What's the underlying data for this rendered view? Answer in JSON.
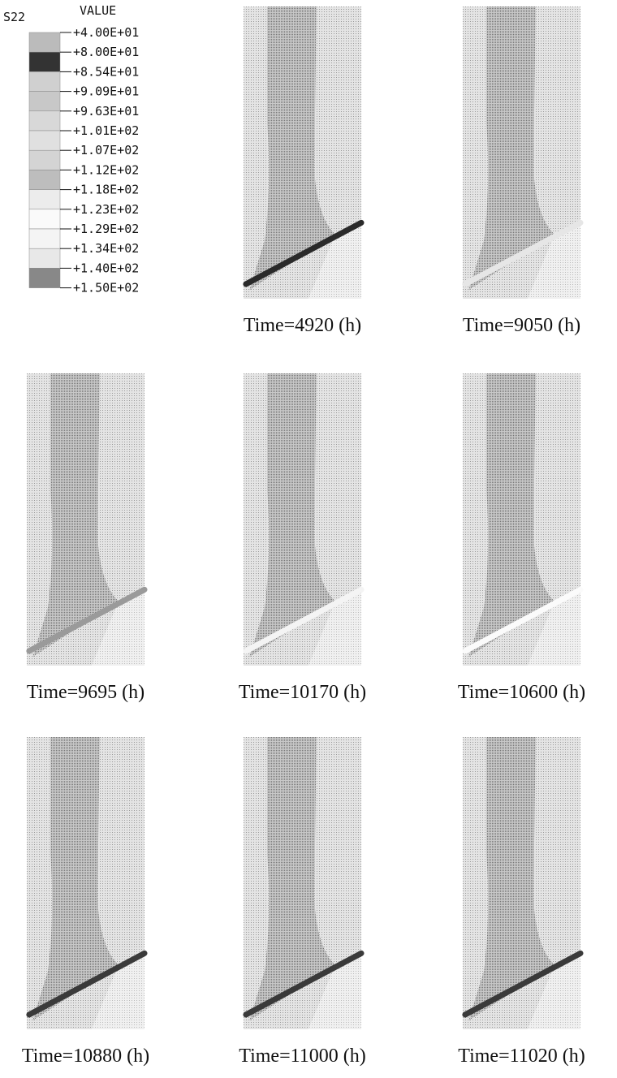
{
  "legend": {
    "variable": "S22",
    "heading": "VALUE",
    "labels": [
      "+4.00E+01",
      "+8.00E+01",
      "+8.54E+01",
      "+9.09E+01",
      "+9.63E+01",
      "+1.01E+02",
      "+1.07E+02",
      "+1.12E+02",
      "+1.18E+02",
      "+1.23E+02",
      "+1.29E+02",
      "+1.34E+02",
      "+1.40E+02",
      "+1.50E+02"
    ]
  },
  "panels": [
    {
      "caption": "Time=4920 (h)"
    },
    {
      "caption": "Time=9050 (h)"
    },
    {
      "caption": "Time=9695 (h)"
    },
    {
      "caption": "Time=10170 (h)"
    },
    {
      "caption": "Time=10600 (h)"
    },
    {
      "caption": "Time=10880 (h)"
    },
    {
      "caption": "Time=11000 (h)"
    },
    {
      "caption": "Time=11020 (h)"
    }
  ]
}
